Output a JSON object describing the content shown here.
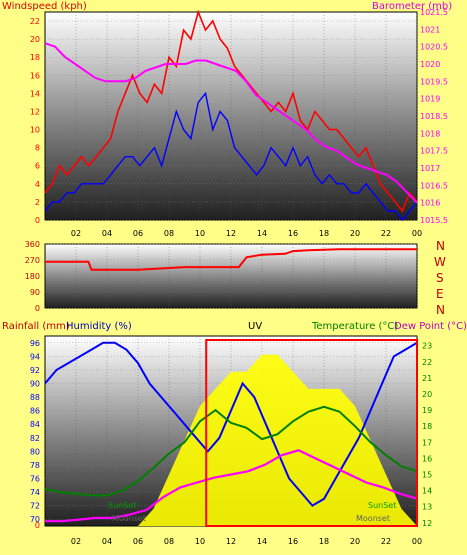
{
  "header": {
    "title": "",
    "ws_label": "Windspeed (kph)",
    "baro_label": "Barometer (mb)"
  },
  "panel3": {
    "rain_label": "Rainfall (mm)",
    "hum_label": "Humidity (%)",
    "uv_label": "UV",
    "temp_label": "Temperature (°C)",
    "dew_label": "Dew Point (°C)"
  },
  "compass": [
    "N",
    "W",
    "S",
    "E",
    "N"
  ],
  "chart_data": [
    {
      "type": "line",
      "name": "wind-baro",
      "x_ticks": [
        "02",
        "04",
        "06",
        "08",
        "10",
        "12",
        "14",
        "16",
        "18",
        "20",
        "22",
        "00"
      ],
      "y_left_ticks": [
        0,
        2,
        4,
        6,
        8,
        10,
        12,
        14,
        16,
        18,
        20,
        22
      ],
      "y_right_ticks": [
        1015.5,
        1016,
        1016.5,
        1017,
        1017.5,
        1018,
        1018.5,
        1019,
        1019.5,
        1020,
        1020.5,
        1021,
        1021.5
      ],
      "ylim_left": [
        0,
        23
      ],
      "ylim_right": [
        1015.5,
        1021.5
      ],
      "colors": {
        "gust": "#ff0000",
        "avg": "#0000ff",
        "baro": "#ff00ff"
      },
      "series": [
        {
          "values": [
            3,
            4,
            6,
            5,
            6,
            7,
            6,
            7,
            8,
            9,
            12,
            14,
            16,
            14,
            13,
            15,
            14,
            18,
            17,
            21,
            20,
            23,
            21,
            22,
            20,
            19,
            17,
            16,
            15,
            14,
            13,
            12,
            13,
            12,
            14,
            11,
            10,
            12,
            11,
            10,
            10,
            9,
            8,
            7,
            8,
            6,
            4,
            3,
            2,
            1,
            3,
            2
          ]
        },
        {
          "values": [
            1,
            2,
            2,
            3,
            3,
            4,
            4,
            4,
            4,
            5,
            6,
            7,
            7,
            6,
            7,
            8,
            6,
            9,
            12,
            10,
            9,
            13,
            14,
            10,
            12,
            11,
            8,
            7,
            6,
            5,
            6,
            8,
            7,
            6,
            8,
            6,
            7,
            5,
            4,
            5,
            4,
            4,
            3,
            3,
            4,
            3,
            2,
            1,
            1,
            0,
            1,
            2
          ]
        },
        {
          "values": [
            1020.6,
            1020.5,
            1020.2,
            1020.0,
            1019.8,
            1019.6,
            1019.5,
            1019.5,
            1019.5,
            1019.6,
            1019.8,
            1019.9,
            1020.0,
            1020.0,
            1020.0,
            1020.1,
            1020.1,
            1020.0,
            1019.9,
            1019.8,
            1019.5,
            1019.1,
            1018.9,
            1018.7,
            1018.5,
            1018.3,
            1018.1,
            1017.8,
            1017.6,
            1017.5,
            1017.3,
            1017.1,
            1017.0,
            1016.9,
            1016.8,
            1016.6,
            1016.3,
            1016.0
          ]
        }
      ]
    },
    {
      "type": "line",
      "name": "wind-direction",
      "y_ticks": [
        0,
        90,
        180,
        270,
        360
      ],
      "ylim": [
        0,
        360
      ],
      "color": "#ff0000",
      "series": [
        {
          "x": [
            0,
            2.8,
            3,
            6,
            7,
            9,
            12.5,
            13,
            14,
            15.5,
            16,
            17,
            19,
            21,
            22,
            24
          ],
          "values": [
            260,
            260,
            215,
            215,
            220,
            230,
            230,
            285,
            300,
            305,
            320,
            325,
            330,
            330,
            330,
            330
          ]
        }
      ]
    },
    {
      "type": "line",
      "name": "rain-hum-uv-temp-dew",
      "y_left_ticks": [
        70,
        72,
        74,
        76,
        78,
        80,
        82,
        84,
        86,
        88,
        90,
        92,
        94,
        96
      ],
      "y_left_extra": [
        0
      ],
      "y_right_ticks": [
        12,
        13,
        14,
        15,
        16,
        17,
        18,
        19,
        20,
        21,
        22,
        23
      ],
      "ylim_left": [
        69,
        97
      ],
      "ylim_right": [
        11.8,
        23.6
      ],
      "colors": {
        "humidity": "#0000ff",
        "temperature": "#008000",
        "dewpoint": "#ff00ff",
        "uv": "#ffff00",
        "rain": "#ff0000",
        "sun": "#606060"
      },
      "annotations": [
        "SunSet",
        "SunSet",
        "Moonset",
        "Moonset"
      ],
      "series": [
        {
          "values": [
            90,
            92,
            93,
            94,
            95,
            96,
            96,
            95,
            93,
            90,
            88,
            86,
            84,
            82,
            80,
            82,
            86,
            90,
            88,
            84,
            80,
            76,
            74,
            72,
            73,
            76,
            79,
            82,
            86,
            90,
            94,
            95,
            96
          ]
        },
        {
          "values": [
            14.1,
            13.9,
            13.8,
            13.7,
            13.7,
            14.0,
            14.6,
            15.4,
            16.3,
            17.0,
            18.3,
            19.0,
            18.2,
            17.9,
            17.2,
            17.5,
            18.3,
            18.9,
            19.2,
            18.9,
            18.0,
            17.0,
            16.2,
            15.5,
            15.2
          ]
        },
        {
          "values": [
            12.1,
            12.1,
            12.2,
            12.3,
            12.3,
            12.5,
            12.8,
            13.6,
            14.2,
            14.5,
            14.8,
            15.0,
            15.2,
            15.6,
            16.2,
            16.5,
            16.0,
            15.5,
            15.0,
            14.5,
            14.2,
            13.8,
            13.5
          ]
        },
        {
          "values": [
            0,
            0,
            0,
            0,
            0,
            0,
            0,
            1,
            3,
            5,
            7,
            8,
            9,
            9,
            10,
            10,
            9,
            8,
            8,
            8,
            7,
            5,
            3,
            1,
            0
          ]
        }
      ],
      "highlight_x": [
        10.4,
        24
      ]
    }
  ]
}
